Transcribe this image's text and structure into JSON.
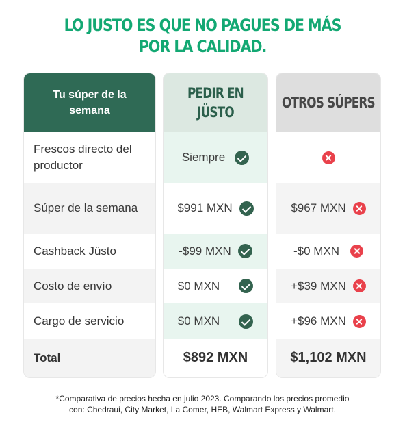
{
  "headline": {
    "line1": "LO JUSTO ES QUE NO PAGUES DE MÁS",
    "line2": "POR LA CALIDAD."
  },
  "columns": {
    "label_header": "Tu súper de la semana",
    "justo_header": "PEDIR EN JÜSTO",
    "otros_header": "OTROS SÚPERS"
  },
  "rows": [
    {
      "label": "Frescos directo del productor",
      "justo": "Siempre",
      "otros": ""
    },
    {
      "label": "Súper de la semana",
      "justo": "$991 MXN",
      "otros": "$967 MXN"
    },
    {
      "label": "Cashback Jüsto",
      "justo": "-$99 MXN",
      "otros": "-$0 MXN"
    },
    {
      "label": "Costo de envío",
      "justo": "$0 MXN",
      "otros": "+$39 MXN"
    },
    {
      "label": "Cargo de servicio",
      "justo": "$0 MXN",
      "otros": "+$96 MXN"
    }
  ],
  "total": {
    "label": "Total",
    "justo": "$892 MXN",
    "otros": "$1,102 MXN"
  },
  "icons": {
    "yes": "check-circle-icon",
    "no": "x-circle-icon"
  },
  "colors": {
    "brand_green": "#13a873",
    "dark_green": "#2f6a55",
    "red": "#e9414b"
  },
  "footnote": {
    "line1": "*Comparativa de precios hecha en julio 2023. Comparando los precios promedio",
    "line2": "con: Chedraui, City Market, La Comer, HEB, Walmart Express y Walmart."
  }
}
